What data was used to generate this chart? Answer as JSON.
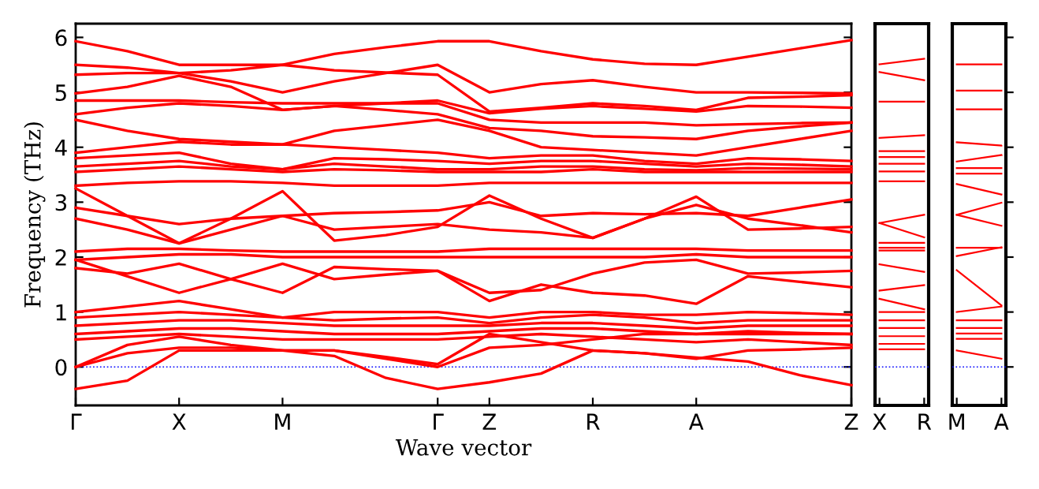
{
  "chart_data": [
    {
      "type": "line",
      "xlabel": "Wave vector",
      "ylabel": "Frequency (THz)",
      "color": "#ff0000",
      "line_style": "solid",
      "categories": [
        "Γ",
        null,
        "X",
        null,
        "M",
        null,
        null,
        "Γ",
        "Z",
        null,
        "R",
        null,
        "A",
        null,
        null,
        "Z"
      ],
      "ylim": [
        -0.7,
        6.25
      ],
      "yticks": [
        0,
        1,
        2,
        3,
        4,
        5,
        6
      ],
      "ref_lines": [
        {
          "axis": "y",
          "value": 0,
          "color": "#0000ff",
          "line_style": "dotted"
        }
      ],
      "series": [
        {
          "values": [
            5.93,
            5.75,
            5.5,
            5.5,
            5.5,
            5.7,
            5.82,
            5.93,
            5.93,
            5.75,
            5.6,
            5.52,
            5.5,
            5.65,
            5.8,
            5.95
          ]
        },
        {
          "values": [
            5.5,
            5.45,
            5.35,
            5.2,
            5.0,
            5.2,
            5.35,
            5.5,
            5.0,
            5.15,
            5.22,
            5.1,
            5.0,
            5.0,
            4.99,
            4.98
          ]
        },
        {
          "values": [
            5.32,
            5.35,
            5.35,
            5.4,
            5.5,
            5.4,
            5.36,
            5.32,
            4.65,
            4.72,
            4.8,
            4.75,
            4.68,
            4.9,
            4.92,
            4.95
          ]
        },
        {
          "values": [
            4.98,
            5.1,
            5.3,
            5.1,
            4.68,
            4.75,
            4.8,
            4.85,
            4.62,
            4.7,
            4.75,
            4.7,
            4.65,
            4.75,
            4.74,
            4.72
          ]
        },
        {
          "values": [
            4.85,
            4.85,
            4.85,
            4.82,
            4.8,
            4.8,
            4.8,
            4.8,
            4.5,
            4.45,
            4.45,
            4.45,
            4.4,
            4.42,
            4.44,
            4.45
          ]
        },
        {
          "values": [
            4.6,
            4.72,
            4.8,
            4.75,
            4.68,
            4.75,
            4.68,
            4.6,
            4.35,
            4.3,
            4.2,
            4.18,
            4.15,
            4.3,
            4.38,
            4.45
          ]
        },
        {
          "values": [
            4.5,
            4.3,
            4.15,
            4.1,
            4.05,
            4.3,
            4.4,
            4.5,
            4.3,
            4.0,
            3.95,
            3.9,
            3.85,
            4.0,
            4.15,
            4.3
          ]
        },
        {
          "values": [
            3.9,
            4.0,
            4.1,
            4.05,
            4.05,
            4.0,
            3.95,
            3.9,
            3.8,
            3.85,
            3.85,
            3.75,
            3.7,
            3.8,
            3.78,
            3.75
          ]
        },
        {
          "values": [
            3.8,
            3.85,
            3.9,
            3.7,
            3.6,
            3.8,
            3.78,
            3.75,
            3.7,
            3.75,
            3.75,
            3.7,
            3.65,
            3.7,
            3.68,
            3.65
          ]
        },
        {
          "values": [
            3.65,
            3.7,
            3.75,
            3.65,
            3.6,
            3.7,
            3.65,
            3.6,
            3.6,
            3.65,
            3.65,
            3.6,
            3.58,
            3.62,
            3.61,
            3.6
          ]
        },
        {
          "values": [
            3.55,
            3.6,
            3.65,
            3.6,
            3.55,
            3.6,
            3.58,
            3.55,
            3.55,
            3.55,
            3.6,
            3.55,
            3.55,
            3.55,
            3.55,
            3.55
          ]
        },
        {
          "values": [
            3.3,
            3.35,
            3.38,
            3.38,
            3.35,
            3.3,
            3.3,
            3.3,
            3.35,
            3.35,
            3.35,
            3.35,
            3.35,
            3.35,
            3.35,
            3.35
          ]
        },
        {
          "values": [
            3.25,
            2.75,
            2.25,
            2.7,
            3.2,
            2.3,
            2.4,
            2.55,
            3.12,
            2.7,
            2.35,
            2.7,
            3.1,
            2.5,
            2.52,
            2.55
          ]
        },
        {
          "values": [
            2.9,
            2.75,
            2.6,
            2.7,
            2.75,
            2.8,
            2.82,
            2.85,
            3.0,
            2.75,
            2.8,
            2.78,
            2.8,
            2.75,
            2.9,
            3.05
          ]
        },
        {
          "values": [
            2.7,
            2.5,
            2.25,
            2.5,
            2.75,
            2.5,
            2.55,
            2.6,
            2.5,
            2.45,
            2.35,
            2.7,
            2.95,
            2.7,
            2.58,
            2.45
          ]
        },
        {
          "values": [
            2.1,
            2.15,
            2.15,
            2.12,
            2.1,
            2.1,
            2.1,
            2.1,
            2.15,
            2.15,
            2.15,
            2.15,
            2.15,
            2.12,
            2.12,
            2.12
          ]
        },
        {
          "values": [
            1.95,
            2.0,
            2.05,
            2.05,
            2.0,
            2.0,
            2.0,
            2.0,
            2.0,
            2.0,
            2.0,
            2.0,
            2.05,
            2.0,
            2.0,
            2.0
          ]
        },
        {
          "values": [
            1.95,
            1.65,
            1.35,
            1.6,
            1.88,
            1.6,
            1.68,
            1.75,
            1.35,
            1.4,
            1.7,
            1.9,
            1.95,
            1.7,
            1.72,
            1.75
          ]
        },
        {
          "values": [
            1.8,
            1.7,
            1.88,
            1.6,
            1.35,
            1.82,
            1.78,
            1.75,
            1.2,
            1.5,
            1.35,
            1.3,
            1.15,
            1.65,
            1.55,
            1.45
          ]
        },
        {
          "values": [
            1.0,
            1.1,
            1.2,
            1.05,
            0.9,
            1.0,
            1.0,
            1.0,
            0.9,
            1.0,
            1.0,
            0.95,
            0.95,
            1.0,
            0.98,
            0.95
          ]
        },
        {
          "values": [
            0.9,
            0.95,
            1.0,
            0.95,
            0.9,
            0.85,
            0.88,
            0.9,
            0.8,
            0.9,
            0.95,
            0.9,
            0.8,
            0.85,
            0.85,
            0.85
          ]
        },
        {
          "values": [
            0.75,
            0.8,
            0.85,
            0.85,
            0.8,
            0.75,
            0.75,
            0.75,
            0.75,
            0.8,
            0.8,
            0.75,
            0.7,
            0.75,
            0.75,
            0.75
          ]
        },
        {
          "values": [
            0.6,
            0.65,
            0.7,
            0.7,
            0.65,
            0.6,
            0.6,
            0.6,
            0.65,
            0.7,
            0.7,
            0.65,
            0.6,
            0.65,
            0.62,
            0.6
          ]
        },
        {
          "values": [
            0.5,
            0.55,
            0.6,
            0.55,
            0.5,
            0.5,
            0.5,
            0.5,
            0.55,
            0.6,
            0.55,
            0.5,
            0.45,
            0.5,
            0.45,
            0.4
          ]
        },
        {
          "values": [
            0.0,
            0.4,
            0.55,
            0.4,
            0.3,
            0.3,
            0.18,
            0.05,
            0.6,
            0.45,
            0.3,
            0.25,
            0.15,
            0.3,
            0.32,
            0.35
          ]
        },
        {
          "values": [
            0.0,
            0.25,
            0.35,
            0.35,
            0.3,
            0.3,
            0.15,
            0.0,
            0.35,
            0.4,
            0.5,
            0.6,
            0.6,
            0.6,
            0.6,
            0.6
          ]
        },
        {
          "values": [
            -0.4,
            -0.25,
            0.3,
            0.3,
            0.3,
            0.2,
            -0.2,
            -0.4,
            -0.28,
            -0.12,
            0.3,
            0.25,
            0.17,
            0.1,
            -0.15,
            -0.33
          ]
        }
      ]
    },
    {
      "type": "line",
      "color": "#ff0000",
      "line_style": "solid",
      "tick_labels": "x",
      "categories": [
        "X",
        "R"
      ],
      "ylim": [
        -0.7,
        6.25
      ],
      "ref_lines": [
        {
          "axis": "y",
          "value": 0,
          "color": "#0000ff",
          "line_style": "dotted"
        }
      ],
      "series": [
        {
          "values": [
            5.51,
            5.61
          ]
        },
        {
          "values": [
            5.37,
            5.22
          ]
        },
        {
          "values": [
            4.83,
            4.83
          ]
        },
        {
          "values": [
            4.17,
            4.22
          ]
        },
        {
          "values": [
            3.93,
            3.93
          ]
        },
        {
          "values": [
            3.82,
            3.82
          ]
        },
        {
          "values": [
            3.7,
            3.7
          ]
        },
        {
          "values": [
            3.56,
            3.56
          ]
        },
        {
          "values": [
            3.38,
            3.38
          ]
        },
        {
          "values": [
            2.62,
            2.77
          ]
        },
        {
          "values": [
            2.62,
            2.36
          ]
        },
        {
          "values": [
            2.26,
            2.26
          ]
        },
        {
          "values": [
            2.17,
            2.17
          ]
        },
        {
          "values": [
            2.12,
            2.12
          ]
        },
        {
          "values": [
            1.87,
            1.73
          ]
        },
        {
          "values": [
            1.39,
            1.49
          ]
        },
        {
          "values": [
            1.24,
            1.05
          ]
        },
        {
          "values": [
            1.0,
            1.0
          ]
        },
        {
          "values": [
            0.85,
            0.85
          ]
        },
        {
          "values": [
            0.71,
            0.71
          ]
        },
        {
          "values": [
            0.56,
            0.56
          ]
        },
        {
          "values": [
            0.42,
            0.42
          ]
        },
        {
          "values": [
            0.32,
            0.32
          ]
        }
      ]
    },
    {
      "type": "line",
      "color": "#ff0000",
      "line_style": "solid",
      "tick_labels": "x",
      "categories": [
        "M",
        "A"
      ],
      "ylim": [
        -0.7,
        6.25
      ],
      "yticks": [
        {
          "value": 0,
          "label": null
        },
        {
          "value": 1,
          "label": null
        },
        {
          "value": 2,
          "label": null
        },
        {
          "value": 3,
          "label": null
        },
        {
          "value": 4,
          "label": null
        },
        {
          "value": 5,
          "label": null
        },
        {
          "value": 6,
          "label": null
        }
      ],
      "ref_lines": [
        {
          "axis": "y",
          "value": 0,
          "color": "#0000ff",
          "line_style": "dotted"
        }
      ],
      "series": [
        {
          "values": [
            5.51,
            5.51
          ]
        },
        {
          "values": [
            5.03,
            5.03
          ]
        },
        {
          "values": [
            4.69,
            4.69
          ]
        },
        {
          "values": [
            4.09,
            4.03
          ]
        },
        {
          "values": [
            3.74,
            3.86
          ]
        },
        {
          "values": [
            3.62,
            3.62
          ]
        },
        {
          "values": [
            3.52,
            3.52
          ]
        },
        {
          "values": [
            3.33,
            3.14
          ]
        },
        {
          "values": [
            2.77,
            2.99
          ]
        },
        {
          "values": [
            2.77,
            2.57
          ]
        },
        {
          "values": [
            2.17,
            2.17
          ]
        },
        {
          "values": [
            2.02,
            2.18
          ]
        },
        {
          "values": [
            1.76,
            1.12
          ]
        },
        {
          "values": [
            1.0,
            1.1
          ]
        },
        {
          "values": [
            0.85,
            0.85
          ]
        },
        {
          "values": [
            0.71,
            0.71
          ]
        },
        {
          "values": [
            0.61,
            0.61
          ]
        },
        {
          "values": [
            0.51,
            0.51
          ]
        },
        {
          "values": [
            0.3,
            0.15
          ]
        }
      ]
    }
  ]
}
